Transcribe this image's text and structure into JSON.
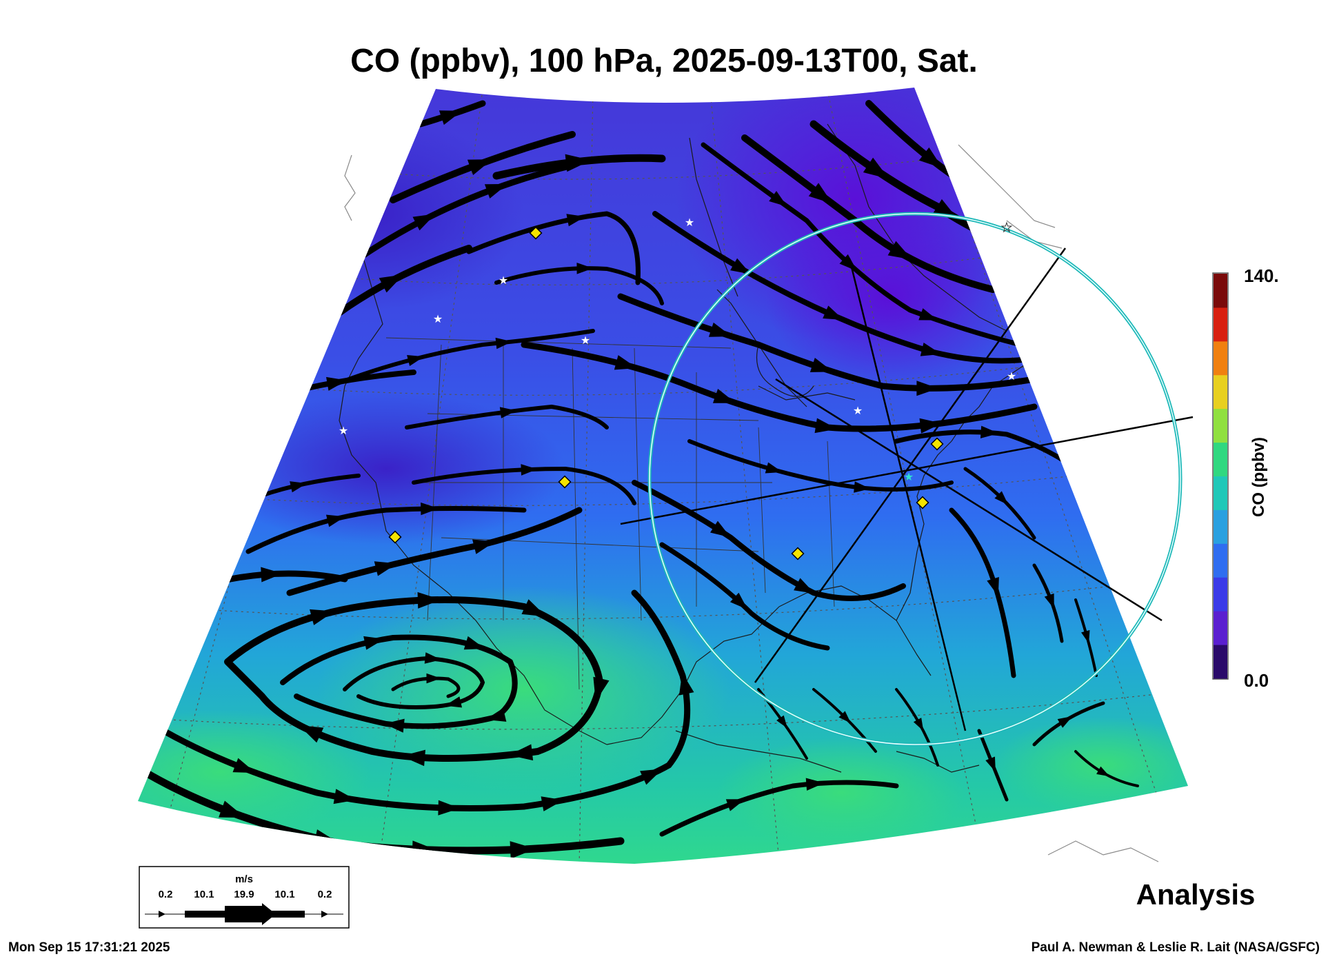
{
  "title": "CO (ppbv), 100 hPa, 2025-09-13T00, Sat.",
  "colorbar": {
    "label": "CO (ppbv)",
    "max_label": "140.",
    "min_label": "0.0",
    "colors": [
      "#2a0a6a",
      "#5a1fd0",
      "#3a3ae8",
      "#2f6df0",
      "#2aa0e0",
      "#20c8b8",
      "#30d880",
      "#90e040",
      "#e8d020",
      "#f08010",
      "#d82010",
      "#7a0a0a"
    ]
  },
  "wind_legend": {
    "unit": "m/s",
    "ticks": [
      "0.2",
      "10.1",
      "19.9",
      "10.1",
      "0.2"
    ]
  },
  "analysis_label": "Analysis",
  "timestamp": "Mon Sep 15 17:31:21 2025",
  "credit": "Paul A. Newman & Leslie R. Lait (NASA/GSFC)",
  "colors": {
    "field_purple": "#5a1fd0",
    "field_blue": "#2f6df0",
    "field_green": "#30d890",
    "streamline": "#000000",
    "ring": "#30d0d0",
    "marker": "#f5e400"
  }
}
